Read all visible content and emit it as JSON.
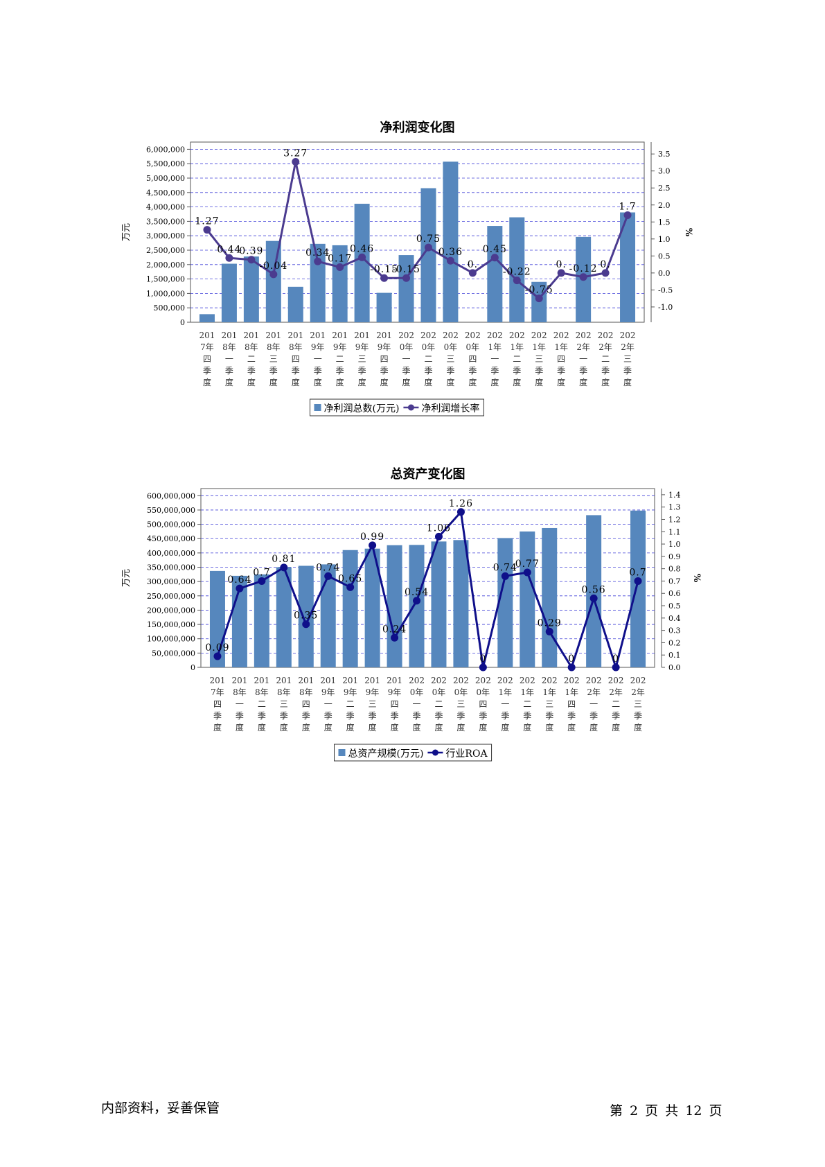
{
  "chart_data": [
    {
      "type": "bar",
      "title": "净利润变化图",
      "ylabel": "万元",
      "y2label": "%",
      "ylim": [
        0,
        6250000
      ],
      "y2lim": [
        -1.45,
        3.85
      ],
      "yticks": [
        0,
        500000,
        1000000,
        1500000,
        2000000,
        2500000,
        3000000,
        3500000,
        4000000,
        4500000,
        5000000,
        5500000,
        6000000
      ],
      "ytick_labels": [
        "0",
        "500,000",
        "1,000,000",
        "1,500,000",
        "2,000,000",
        "2,500,000",
        "3,000,000",
        "3,500,000",
        "4,000,000",
        "4,500,000",
        "5,000,000",
        "5,500,000",
        "6,000,000"
      ],
      "y2ticks": [
        -1.0,
        -0.5,
        0.0,
        0.5,
        1.0,
        1.5,
        2.0,
        2.5,
        3.0,
        3.5
      ],
      "y2tick_labels": [
        "-1.0",
        "-0.5",
        "0.0",
        "0.5",
        "1.0",
        "1.5",
        "2.0",
        "2.5",
        "3.0",
        "3.5"
      ],
      "grid": true,
      "legend": "bottom-center",
      "categories": [
        [
          "201",
          "7年",
          "四",
          "季",
          "度"
        ],
        [
          "201",
          "8年",
          "一",
          "季",
          "度"
        ],
        [
          "201",
          "8年",
          "二",
          "季",
          "度"
        ],
        [
          "201",
          "8年",
          "三",
          "季",
          "度"
        ],
        [
          "201",
          "8年",
          "四",
          "季",
          "度"
        ],
        [
          "201",
          "9年",
          "一",
          "季",
          "度"
        ],
        [
          "201",
          "9年",
          "二",
          "季",
          "度"
        ],
        [
          "201",
          "9年",
          "三",
          "季",
          "度"
        ],
        [
          "201",
          "9年",
          "四",
          "季",
          "度"
        ],
        [
          "202",
          "0年",
          "一",
          "季",
          "度"
        ],
        [
          "202",
          "0年",
          "二",
          "季",
          "度"
        ],
        [
          "202",
          "0年",
          "三",
          "季",
          "度"
        ],
        [
          "202",
          "0年",
          "四",
          "季",
          "度"
        ],
        [
          "202",
          "1年",
          "一",
          "季",
          "度"
        ],
        [
          "202",
          "1年",
          "二",
          "季",
          "度"
        ],
        [
          "202",
          "1年",
          "三",
          "季",
          "度"
        ],
        [
          "202",
          "1年",
          "四",
          "季",
          "度"
        ],
        [
          "202",
          "2年",
          "一",
          "季",
          "度"
        ],
        [
          "202",
          "2年",
          "二",
          "季",
          "度"
        ],
        [
          "202",
          "2年",
          "三",
          "季",
          "度"
        ]
      ],
      "series": [
        {
          "name": "净利润总数(万元)",
          "kind": "bar",
          "color": "#5687bd",
          "values": [
            280000,
            2030000,
            2280000,
            2820000,
            1230000,
            2720000,
            2670000,
            4110000,
            1020000,
            2330000,
            4650000,
            5570000,
            0,
            3340000,
            3640000,
            1400000,
            0,
            2960000,
            0,
            3810000
          ]
        },
        {
          "name": "净利润增长率",
          "kind": "line",
          "color": "#4b3b8f",
          "values": [
            1.27,
            0.44,
            0.39,
            -0.04,
            3.27,
            0.34,
            0.17,
            0.46,
            -0.15,
            -0.15,
            0.75,
            0.36,
            0.0,
            0.45,
            -0.22,
            -0.75,
            0.0,
            -0.12,
            0.0,
            1.7
          ],
          "labels": [
            "1.27",
            "0.44",
            "0.39",
            "-0.04",
            "3.27",
            "0.34",
            "0.17",
            "0.46",
            "-0.15",
            "-0.15",
            "0.75",
            "0.36",
            "0.",
            "0.45",
            "-0.22",
            "-0.75",
            "0.",
            "-0.12",
            "0.",
            "1.7"
          ]
        }
      ]
    },
    {
      "type": "bar",
      "title": "总资产变化图",
      "ylabel": "万元",
      "y2label": "%",
      "ylim": [
        0,
        625000000
      ],
      "y2lim": [
        0,
        1.45
      ],
      "yticks": [
        0,
        50000000,
        100000000,
        150000000,
        200000000,
        250000000,
        300000000,
        350000000,
        400000000,
        450000000,
        500000000,
        550000000,
        600000000
      ],
      "ytick_labels": [
        "0",
        "50,000,000",
        "100,000,000",
        "150,000,000",
        "200,000,000",
        "250,000,000",
        "300,000,000",
        "350,000,000",
        "400,000,000",
        "450,000,000",
        "500,000,000",
        "550,000,000",
        "600,000,000"
      ],
      "y2ticks": [
        0.0,
        0.1,
        0.2,
        0.3,
        0.4,
        0.5,
        0.6,
        0.7,
        0.8,
        0.9,
        1.0,
        1.1,
        1.2,
        1.3,
        1.4
      ],
      "y2tick_labels": [
        "0.0",
        "0.1",
        "0.2",
        "0.3",
        "0.4",
        "0.5",
        "0.6",
        "0.7",
        "0.8",
        "0.9",
        "1.0",
        "1.1",
        "1.2",
        "1.3",
        "1.4"
      ],
      "grid": true,
      "legend": "bottom-center",
      "categories": [
        [
          "201",
          "7年",
          "四",
          "季",
          "度"
        ],
        [
          "201",
          "8年",
          "一",
          "季",
          "度"
        ],
        [
          "201",
          "8年",
          "二",
          "季",
          "度"
        ],
        [
          "201",
          "8年",
          "三",
          "季",
          "度"
        ],
        [
          "201",
          "8年",
          "四",
          "季",
          "度"
        ],
        [
          "201",
          "9年",
          "一",
          "季",
          "度"
        ],
        [
          "201",
          "9年",
          "二",
          "季",
          "度"
        ],
        [
          "201",
          "9年",
          "三",
          "季",
          "度"
        ],
        [
          "201",
          "9年",
          "四",
          "季",
          "度"
        ],
        [
          "202",
          "0年",
          "一",
          "季",
          "度"
        ],
        [
          "202",
          "0年",
          "二",
          "季",
          "度"
        ],
        [
          "202",
          "0年",
          "三",
          "季",
          "度"
        ],
        [
          "202",
          "0年",
          "四",
          "季",
          "度"
        ],
        [
          "202",
          "1年",
          "一",
          "季",
          "度"
        ],
        [
          "202",
          "1年",
          "二",
          "季",
          "度"
        ],
        [
          "202",
          "1年",
          "三",
          "季",
          "度"
        ],
        [
          "202",
          "1年",
          "四",
          "季",
          "度"
        ],
        [
          "202",
          "2年",
          "一",
          "季",
          "度"
        ],
        [
          "202",
          "2年",
          "二",
          "季",
          "度"
        ],
        [
          "202",
          "2年",
          "三",
          "季",
          "度"
        ]
      ],
      "series": [
        {
          "name": "总资产规模(万元)",
          "kind": "bar",
          "color": "#5687bd",
          "values": [
            337000000,
            320000000,
            325000000,
            350000000,
            355000000,
            360000000,
            410000000,
            415000000,
            427000000,
            428000000,
            440000000,
            445000000,
            0,
            452000000,
            475000000,
            487000000,
            0,
            532000000,
            0,
            548000000
          ]
        },
        {
          "name": "行业ROA",
          "kind": "line",
          "color": "#0f0f8a",
          "values": [
            0.09,
            0.64,
            0.7,
            0.81,
            0.35,
            0.74,
            0.65,
            0.99,
            0.24,
            0.54,
            1.06,
            1.26,
            0.0,
            0.74,
            0.77,
            0.29,
            0.0,
            0.56,
            0.0,
            0.7
          ],
          "labels": [
            "0.09",
            "0.64",
            "0.7",
            "0.81",
            "0.35",
            "0.74",
            "0.65",
            "0.99",
            "0.24",
            "0.54",
            "1.06",
            "1.26",
            "0",
            "0.74",
            "0.77",
            "0.29",
            "0",
            "0.56",
            "0",
            "0.7"
          ]
        }
      ]
    }
  ],
  "footer": {
    "left": "内部资料，妥善保管",
    "right": "第 2 页  共 12 页"
  }
}
